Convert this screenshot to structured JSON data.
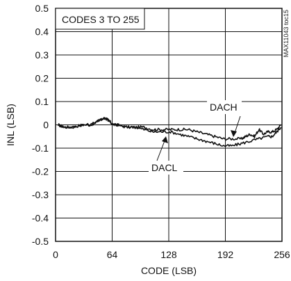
{
  "chart_data": {
    "type": "line",
    "xlabel": "CODE (LSB)",
    "ylabel": "INL (LSB)",
    "xlim": [
      0,
      256
    ],
    "ylim": [
      -0.5,
      0.5
    ],
    "xticks": [
      0,
      64,
      128,
      192,
      256
    ],
    "yticks": [
      0.5,
      0.4,
      0.3,
      0.2,
      0.1,
      0,
      -0.1,
      -0.2,
      -0.3,
      -0.4,
      -0.5
    ],
    "ytick_labels": [
      "0.5",
      "0.4",
      "0.3",
      "0.2",
      "0.1",
      "0",
      "-0.1",
      "-0.2",
      "-0.3",
      "-0.4",
      "-0.5"
    ],
    "grid": true,
    "annotation_box": "CODES 3 TO 255",
    "side_note": "MAX11043 toc15",
    "series": [
      {
        "name": "DACH",
        "x": [
          3,
          10,
          20,
          30,
          40,
          50,
          55,
          60,
          65,
          70,
          80,
          90,
          100,
          110,
          120,
          130,
          140,
          150,
          160,
          170,
          180,
          190,
          200,
          210,
          215,
          220,
          225,
          230,
          235,
          240,
          245,
          250,
          255
        ],
        "y": [
          0.0,
          -0.01,
          -0.01,
          0.0,
          0.0,
          0.02,
          0.03,
          0.02,
          0.0,
          0.0,
          -0.01,
          -0.01,
          -0.01,
          -0.02,
          -0.02,
          -0.02,
          -0.02,
          -0.02,
          -0.03,
          -0.04,
          -0.05,
          -0.06,
          -0.06,
          -0.06,
          -0.05,
          -0.04,
          -0.05,
          -0.02,
          -0.04,
          -0.03,
          -0.03,
          -0.02,
          0.0
        ]
      },
      {
        "name": "DACL",
        "x": [
          3,
          10,
          20,
          30,
          40,
          50,
          55,
          60,
          65,
          70,
          80,
          90,
          100,
          110,
          120,
          130,
          140,
          150,
          160,
          170,
          180,
          190,
          200,
          210,
          220,
          230,
          240,
          245,
          250,
          255
        ],
        "y": [
          0.0,
          -0.01,
          -0.01,
          0.0,
          0.0,
          0.02,
          0.03,
          0.02,
          0.0,
          0.0,
          -0.01,
          -0.01,
          -0.02,
          -0.03,
          -0.03,
          -0.03,
          -0.04,
          -0.05,
          -0.06,
          -0.07,
          -0.08,
          -0.09,
          -0.09,
          -0.08,
          -0.07,
          -0.06,
          -0.05,
          -0.05,
          -0.03,
          -0.01
        ]
      }
    ],
    "labels": {
      "dach": "DACH",
      "dacl": "DACL"
    }
  }
}
